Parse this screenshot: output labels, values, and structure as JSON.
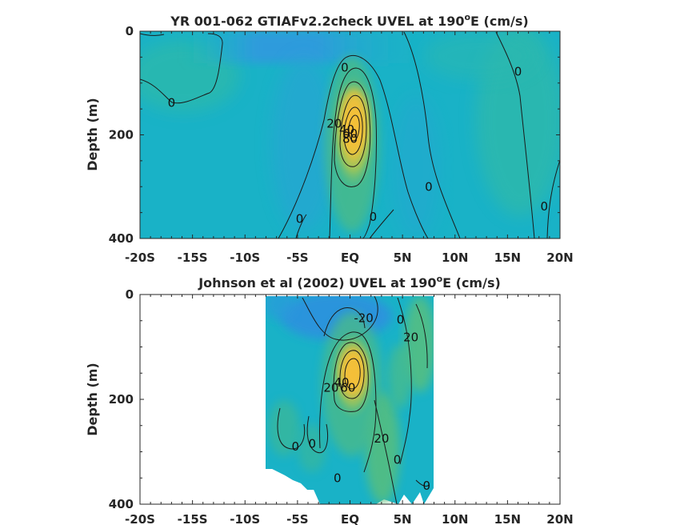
{
  "chart_data": [
    {
      "type": "heatmap",
      "title_prefix": "YR 001-062 GTIAFv2.2check UVEL at 190",
      "title_superscript": "o",
      "title_suffix": "E (cm/s)",
      "xlabel": "",
      "ylabel": "Depth (m)",
      "xlim": [
        -20,
        20
      ],
      "ylim": [
        0,
        400
      ],
      "y_reversed": true,
      "x_ticks": [
        -20,
        -15,
        -10,
        -5,
        0,
        5,
        10,
        15,
        20
      ],
      "x_tick_labels": [
        "-20S",
        "-15S",
        "-10S",
        "-5S",
        "EQ",
        "5N",
        "10N",
        "15N",
        "20N"
      ],
      "y_ticks": [
        0,
        200,
        400
      ],
      "y_tick_labels": [
        "0",
        "200",
        "400"
      ],
      "data_lon_range": [
        -20,
        20
      ],
      "core": {
        "lon": 0.2,
        "depth": 160,
        "max_speed": 80
      },
      "contour_labels": [
        {
          "text": "0",
          "lon": -17,
          "depth": 138
        },
        {
          "text": "0",
          "lon": -0.5,
          "depth": 70
        },
        {
          "text": "20",
          "lon": -1.5,
          "depth": 178
        },
        {
          "text": "40",
          "lon": -0.3,
          "depth": 190
        },
        {
          "text": "60",
          "lon": 0.0,
          "depth": 198
        },
        {
          "text": "80",
          "lon": 0.0,
          "depth": 208
        },
        {
          "text": "0",
          "lon": 16,
          "depth": 78
        },
        {
          "text": "0",
          "lon": 7.5,
          "depth": 300
        },
        {
          "text": "0",
          "lon": 18.5,
          "depth": 338
        },
        {
          "text": "0",
          "lon": -4.8,
          "depth": 362
        },
        {
          "text": "0",
          "lon": 2.2,
          "depth": 358
        }
      ],
      "colors": {
        "weak_westward": "#3a88e0",
        "background": "#19b2c7",
        "moderate": "#6ec06a",
        "strong": "#f2bc3b"
      }
    },
    {
      "type": "heatmap",
      "title_prefix": "Johnson et al (2002) UVEL at 190",
      "title_superscript": "o",
      "title_suffix": "E (cm/s)",
      "xlabel": "",
      "ylabel": "Depth (m)",
      "xlim": [
        -20,
        20
      ],
      "ylim": [
        0,
        400
      ],
      "y_reversed": true,
      "x_ticks": [
        -20,
        -15,
        -10,
        -5,
        0,
        5,
        10,
        15,
        20
      ],
      "x_tick_labels": [
        "-20S",
        "-15S",
        "-10S",
        "-5S",
        "EQ",
        "5N",
        "10N",
        "15N",
        "20N"
      ],
      "y_ticks": [
        0,
        200,
        400
      ],
      "y_tick_labels": [
        "0",
        "200",
        "400"
      ],
      "data_lon_range": [
        -8,
        8
      ],
      "core": {
        "lon": 0.3,
        "depth": 160,
        "max_speed": 80
      },
      "contour_labels": [
        {
          "text": "-20",
          "lon": 1.3,
          "depth": 45
        },
        {
          "text": "0",
          "lon": 4.8,
          "depth": 48
        },
        {
          "text": "20",
          "lon": 5.8,
          "depth": 82
        },
        {
          "text": "20",
          "lon": -1.8,
          "depth": 178
        },
        {
          "text": "40",
          "lon": -0.8,
          "depth": 168
        },
        {
          "text": "60",
          "lon": -0.2,
          "depth": 178
        },
        {
          "text": "0",
          "lon": -5.2,
          "depth": 290
        },
        {
          "text": "0",
          "lon": -3.6,
          "depth": 285
        },
        {
          "text": "20",
          "lon": 3.0,
          "depth": 275
        },
        {
          "text": "0",
          "lon": 4.5,
          "depth": 315
        },
        {
          "text": "0",
          "lon": -1.2,
          "depth": 350
        },
        {
          "text": "0",
          "lon": 7.3,
          "depth": 365
        }
      ],
      "colors": {
        "weak_westward": "#3a88e0",
        "background": "#19b2c7",
        "moderate": "#6ec06a",
        "strong": "#f2bc3b"
      }
    }
  ]
}
